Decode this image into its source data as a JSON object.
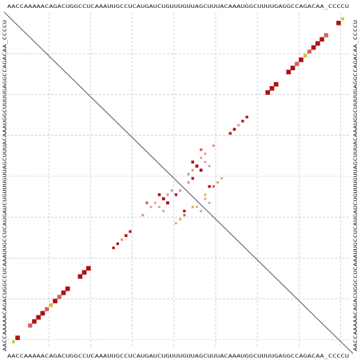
{
  "sequence": "AACCAAAAACAGACUGGCCUCAAAUUGCCUCAUGAUCUGUUUGUUAGCUUUACAAAUGGCUUUUGAGGCCAGACAA_CCCCU",
  "colors": {
    "background": "#ffffff",
    "grid": "#bdbdbd",
    "diagonal": "#333333",
    "text": "#222222",
    "strong": "#b01010",
    "medium": "#d36060",
    "weak": "#e89090",
    "yellow": "#c9c53a"
  },
  "chart_data": {
    "type": "heatmap",
    "description_of_axes": "sequence along top, bottom, left and right",
    "grid": true,
    "main_diagonal_line": true,
    "pairs": [
      {
        "i": 1,
        "j": 80,
        "p": 0.35,
        "tone": "yellow"
      },
      {
        "i": 2,
        "j": 79,
        "p": 0.85,
        "tone": "strong"
      },
      {
        "i": 5,
        "j": 76,
        "p": 0.75,
        "tone": "medium"
      },
      {
        "i": 6,
        "j": 75,
        "p": 0.85,
        "tone": "strong"
      },
      {
        "i": 7,
        "j": 74,
        "p": 0.9,
        "tone": "strong"
      },
      {
        "i": 8,
        "j": 73,
        "p": 0.9,
        "tone": "strong"
      },
      {
        "i": 9,
        "j": 72,
        "p": 0.7,
        "tone": "medium"
      },
      {
        "i": 10,
        "j": 71,
        "p": 0.55,
        "tone": "yellow"
      },
      {
        "i": 11,
        "j": 70,
        "p": 0.9,
        "tone": "strong"
      },
      {
        "i": 12,
        "j": 69,
        "p": 0.75,
        "tone": "medium"
      },
      {
        "i": 13,
        "j": 68,
        "p": 0.9,
        "tone": "strong"
      },
      {
        "i": 14,
        "j": 67,
        "p": 0.9,
        "tone": "strong"
      },
      {
        "i": 17,
        "j": 64,
        "p": 0.9,
        "tone": "strong"
      },
      {
        "i": 18,
        "j": 63,
        "p": 0.9,
        "tone": "strong"
      },
      {
        "i": 19,
        "j": 62,
        "p": 0.9,
        "tone": "strong"
      },
      {
        "i": 25,
        "j": 57,
        "p": 0.3,
        "tone": "strong"
      },
      {
        "i": 26,
        "j": 56,
        "p": 0.3,
        "tone": "strong"
      },
      {
        "i": 27,
        "j": 55,
        "p": 0.25,
        "tone": "weak"
      },
      {
        "i": 28,
        "j": 54,
        "p": 0.35,
        "tone": "strong"
      },
      {
        "i": 29,
        "j": 53,
        "p": 0.3,
        "tone": "strong"
      },
      {
        "i": 32,
        "j": 49,
        "p": 0.25,
        "tone": "weak"
      },
      {
        "i": 36,
        "j": 44,
        "p": 0.35,
        "tone": "strong"
      },
      {
        "i": 37,
        "j": 45,
        "p": 0.4,
        "tone": "strong"
      },
      {
        "i": 38,
        "j": 44,
        "p": 0.25,
        "tone": "weak"
      },
      {
        "i": 38,
        "j": 46,
        "p": 0.4,
        "tone": "strong"
      },
      {
        "i": 39,
        "j": 43,
        "p": 0.25,
        "tone": "weak"
      },
      {
        "i": 40,
        "j": 44,
        "p": 0.3,
        "tone": "strong"
      },
      {
        "i": 41,
        "j": 43,
        "p": 0.25,
        "tone": "weak"
      },
      {
        "i": 42,
        "j": 48,
        "p": 0.3,
        "tone": "strong"
      },
      {
        "i": 42,
        "j": 49,
        "p": 0.25,
        "tone": "medium"
      },
      {
        "i": 44,
        "j": 47,
        "p": 0.25,
        "tone": "yellow"
      },
      {
        "i": 45,
        "j": 47,
        "p": 0.2,
        "tone": "weak"
      },
      {
        "i": 46,
        "j": 48,
        "p": 0.2,
        "tone": "weak"
      },
      {
        "i": 41,
        "j": 50,
        "p": 0.25,
        "tone": "yellow"
      },
      {
        "i": 40,
        "j": 51,
        "p": 0.2,
        "tone": "weak"
      },
      {
        "i": 35,
        "j": 46,
        "p": 0.2,
        "tone": "weak"
      },
      {
        "i": 36,
        "j": 47,
        "p": 0.2,
        "tone": "weak"
      },
      {
        "i": 37,
        "j": 48,
        "p": 0.2,
        "tone": "weak"
      },
      {
        "i": 33,
        "j": 46,
        "p": 0.3,
        "tone": "medium"
      },
      {
        "i": 34,
        "j": 47,
        "p": 0.2,
        "tone": "weak"
      }
    ]
  }
}
